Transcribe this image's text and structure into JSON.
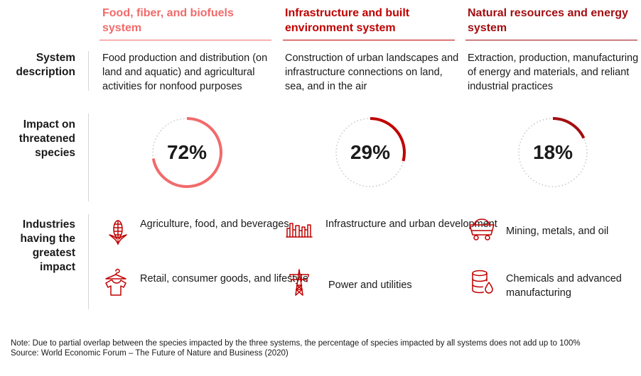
{
  "colors": {
    "food": "#f16b6b",
    "infra": "#c00000",
    "natural": "#a30e12",
    "track": "#c9c9c9",
    "rule": "#d6d6d6"
  },
  "row_labels": {
    "system_description": "System description",
    "impact": "Impact on threatened species",
    "industries": "Industries having the greatest impact"
  },
  "systems": [
    {
      "key": "food",
      "title": "Food, fiber, and biofuels system",
      "description": "Food production and distribution (on land and aquatic) and agricultural activities for nonfood purposes",
      "impact_label": "72%",
      "impact_value": 72,
      "industries": [
        {
          "icon": "corn-icon",
          "label": "Agriculture, food, and beverages"
        },
        {
          "icon": "shirt-hanger-icon",
          "label": "Retail, consumer goods, and lifestyle"
        }
      ]
    },
    {
      "key": "infra",
      "title": "Infrastructure and built environment system",
      "description": "Construction of urban landscapes and infrastructure connections on land, sea, and in the air",
      "impact_label": "29%",
      "impact_value": 29,
      "industries": [
        {
          "icon": "city-skyline-icon",
          "label": "Infrastructure and urban development"
        },
        {
          "icon": "power-pylon-icon",
          "label": "Power and utilities"
        }
      ]
    },
    {
      "key": "natural",
      "title": "Natural resources and energy system",
      "description": "Extraction, production, manufacturing of energy and materials, and reliant industrial practices",
      "impact_label": "18%",
      "impact_value": 18,
      "industries": [
        {
          "icon": "mining-cart-icon",
          "label": "Mining, metals, and oil"
        },
        {
          "icon": "chemical-barrel-icon",
          "label": "Chemicals and advanced manufacturing"
        }
      ]
    }
  ],
  "footer": {
    "note": "Note: Due to partial overlap between the species impacted by the three systems, the percentage of species impacted by all systems does not add up to 100%",
    "source": "Source: World Economic Forum – The Future of Nature and Business (2020)"
  }
}
